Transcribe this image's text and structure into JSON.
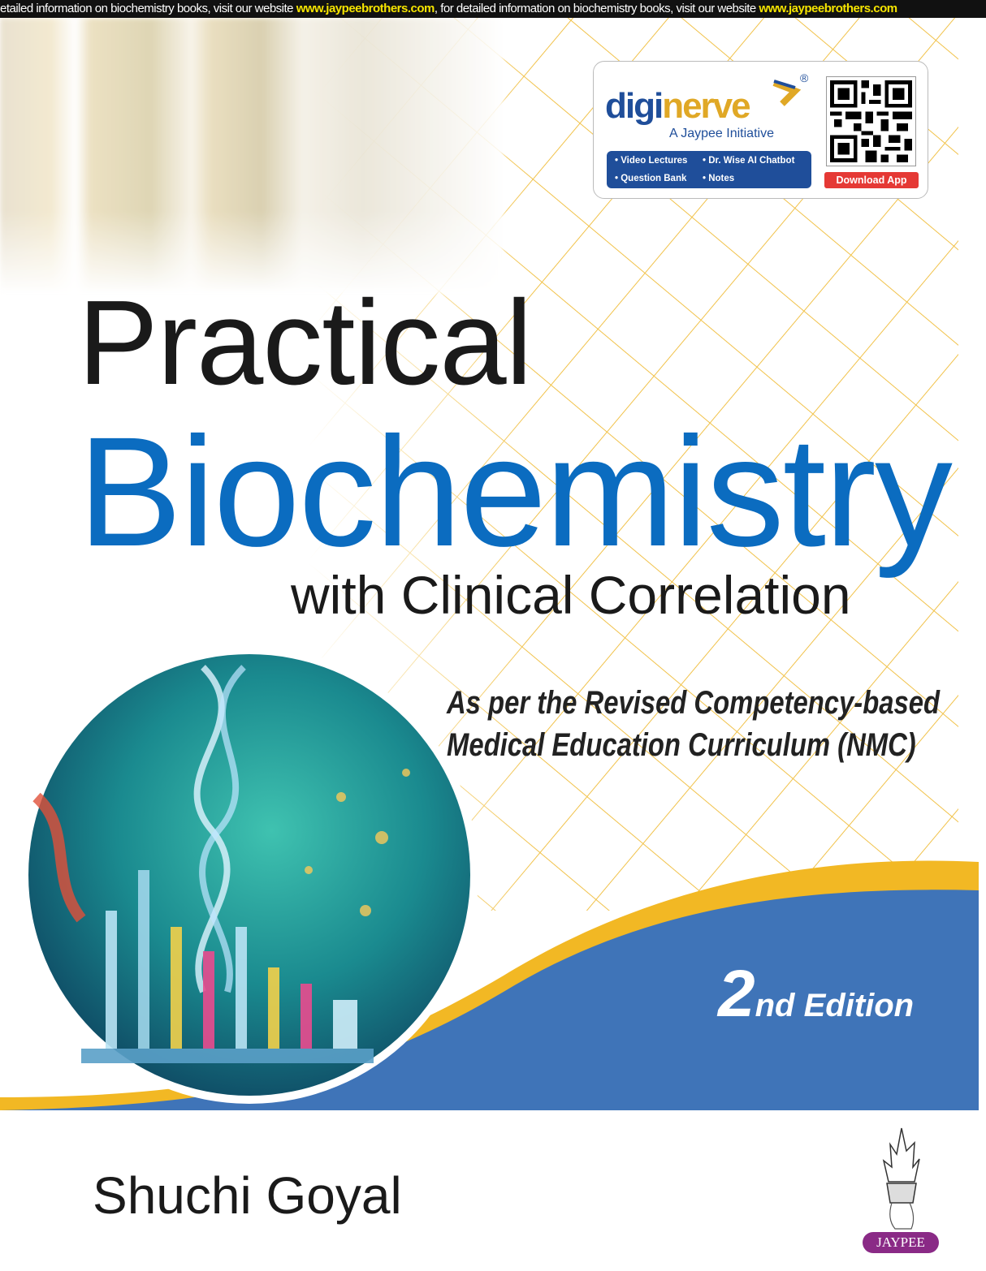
{
  "banner": {
    "segments": [
      {
        "text": "etailed information on biochemistry books, visit our website ",
        "url": "www.jaypeebrothers.com"
      },
      {
        "text": ", for detailed information on biochemistry books, visit our website ",
        "url": "www.jaypeebrothers.com"
      }
    ]
  },
  "promo_card": {
    "logo_part1": "digi",
    "logo_part2": "nerve",
    "registered": "®",
    "tagline": "A Jaypee Initiative",
    "features": [
      "• Video Lectures",
      "• Dr. Wise AI Chatbot",
      "• Question Bank",
      "• Notes"
    ],
    "download_label": "Download App"
  },
  "title": {
    "line1": "Practical",
    "line2": "Biochemistry",
    "line3": "with Clinical Correlation"
  },
  "subtitle": {
    "line1": "As per the Revised Competency-based",
    "line2": "Medical Education Curriculum (NMC)"
  },
  "edition": {
    "number": "2",
    "suffix": "nd Edition"
  },
  "author": "Shuchi Goyal",
  "publisher": "JAYPEE",
  "colors": {
    "title_blue": "#0b6cc0",
    "band_blue": "#3f74b8",
    "accent_yellow": "#f2b824",
    "publisher_purple": "#8a2a86"
  }
}
